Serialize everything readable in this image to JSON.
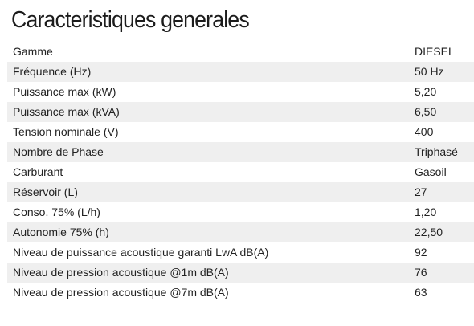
{
  "title": "Caracteristiques generales",
  "specs": [
    {
      "label": "Gamme",
      "value": "DIESEL"
    },
    {
      "label": "Fréquence (Hz)",
      "value": "50 Hz"
    },
    {
      "label": "Puissance max (kW)",
      "value": "5,20"
    },
    {
      "label": "Puissance max (kVA)",
      "value": "6,50"
    },
    {
      "label": "Tension nominale (V)",
      "value": "400"
    },
    {
      "label": "Nombre de Phase",
      "value": "Triphasé"
    },
    {
      "label": "Carburant",
      "value": "Gasoil"
    },
    {
      "label": "Réservoir (L)",
      "value": "27"
    },
    {
      "label": "Conso. 75% (L/h)",
      "value": "1,20"
    },
    {
      "label": "Autonomie 75% (h)",
      "value": "22,50"
    },
    {
      "label": "Niveau de puissance acoustique garanti LwA dB(A)",
      "value": "92"
    },
    {
      "label": "Niveau de pression acoustique @1m dB(A)",
      "value": "76"
    },
    {
      "label": "Niveau de pression acoustique @7m dB(A)",
      "value": "63"
    }
  ],
  "colors": {
    "row_stripe": "#efefef",
    "text": "#222222",
    "background": "#ffffff"
  }
}
